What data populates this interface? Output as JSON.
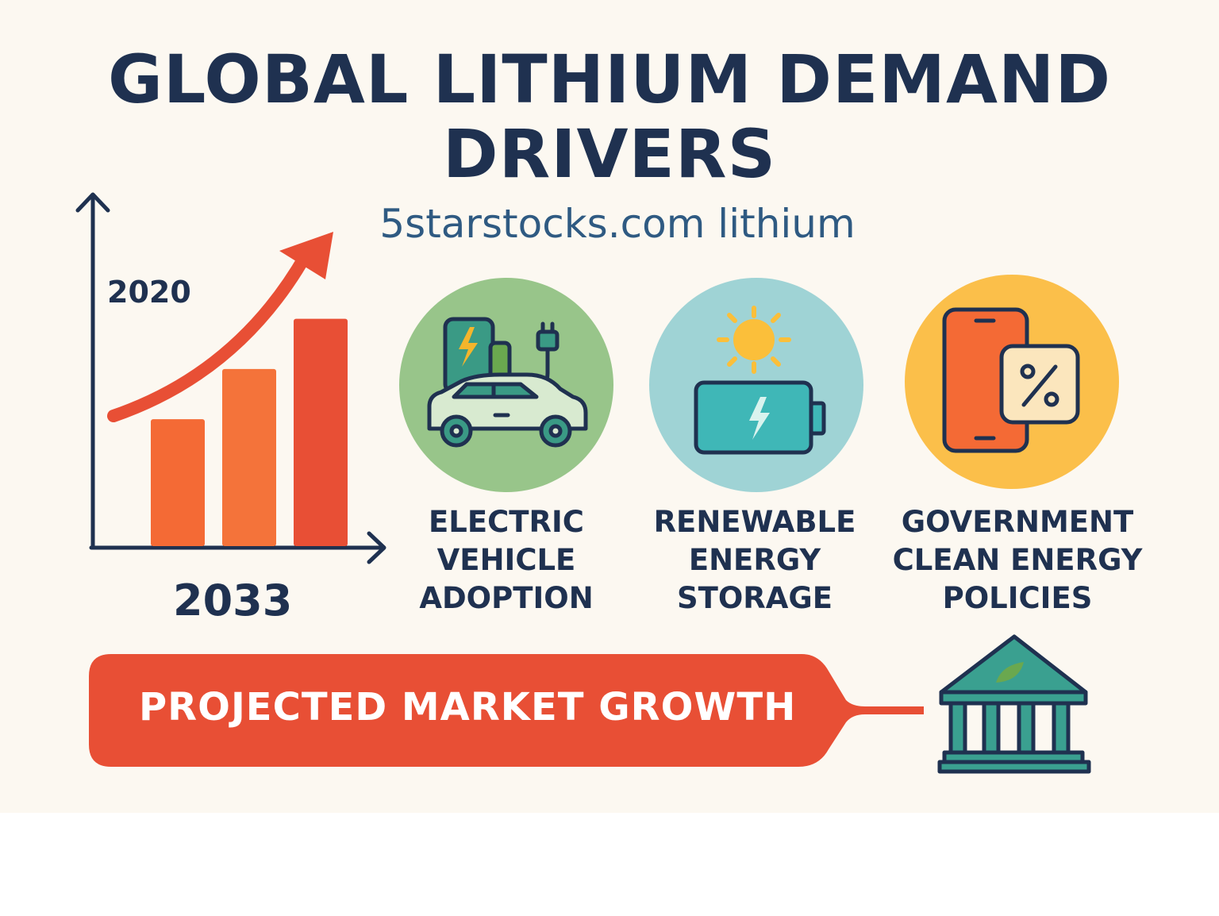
{
  "title": {
    "line1": "GLOBAL LITHIUM DEMAND",
    "line2": "DRIVERS"
  },
  "subtitle": "5starstocks.com lithium",
  "chart": {
    "start_label": "2020",
    "end_label": "2033",
    "trend": "rising",
    "bar_levels": [
      0.48,
      0.67,
      0.86
    ],
    "colors": {
      "bar1": "#f46a35",
      "bar2": "#f4733a",
      "bar3": "#e84f35",
      "arrow": "#e84f35",
      "axis": "#1f3150"
    }
  },
  "drivers": [
    {
      "icon": "ev-charging-icon",
      "label_lines": [
        "ELECTRIC",
        "VEHICLE",
        "ADOPTION"
      ],
      "color": "#98c58a"
    },
    {
      "icon": "battery-sun-icon",
      "label_lines": [
        "RENEWABLE",
        "ENERGY",
        "STORAGE"
      ],
      "color": "#9fd3d5"
    },
    {
      "icon": "phone-percent-icon",
      "label_lines": [
        "GOVERNMENT",
        "CLEAN ENERGY",
        "POLICIES"
      ],
      "color": "#fbbf4a"
    }
  ],
  "banner": {
    "text": "PROJECTED MARKET GROWTH",
    "color": "#e84f35",
    "icon": "government-building-icon"
  },
  "colors": {
    "navy": "#1f3150",
    "background": "#fcf8f1"
  }
}
